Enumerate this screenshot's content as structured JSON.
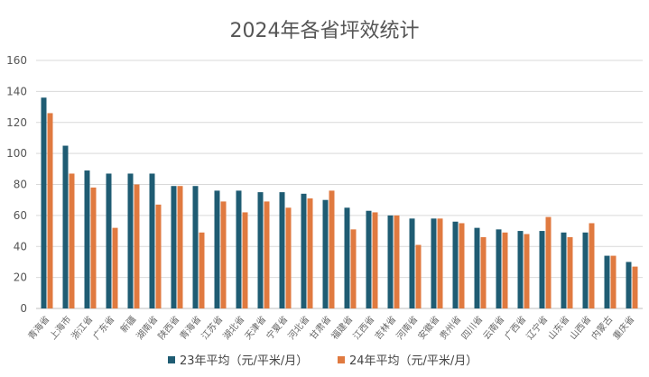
{
  "chart_data": {
    "type": "bar",
    "title": "2024年各省坪效统计",
    "xlabel": "",
    "ylabel": "",
    "ylim": [
      0,
      160
    ],
    "yticks": [
      0,
      20,
      40,
      60,
      80,
      100,
      120,
      140,
      160
    ],
    "grid": true,
    "legend_position": "bottom",
    "categories": [
      "青海省",
      "上海市",
      "浙江省",
      "广东省",
      "新疆",
      "湖南省",
      "陕西省",
      "青海省",
      "江苏省",
      "湖北省",
      "天津省",
      "宁夏省",
      "河北省",
      "甘肃省",
      "福建省",
      "江西省",
      "吉林省",
      "河南省",
      "安徽省",
      "贵州省",
      "四川省",
      "云南省",
      "广西省",
      "辽宁省",
      "山东省",
      "山西省",
      "内蒙古",
      "重庆省"
    ],
    "series": [
      {
        "name": "23年平均（元/平米/月）",
        "color": "#1f5c73",
        "values": [
          136,
          105,
          89,
          87,
          87,
          87,
          79,
          79,
          76,
          76,
          75,
          75,
          74,
          70,
          65,
          63,
          60,
          58,
          58,
          56,
          52,
          51,
          50,
          50,
          49,
          49,
          34,
          30
        ]
      },
      {
        "name": "24年平均（元/平米/月）",
        "color": "#e07a40",
        "values": [
          126,
          87,
          78,
          52,
          80,
          67,
          79,
          49,
          69,
          62,
          69,
          65,
          71,
          76,
          51,
          62,
          60,
          41,
          58,
          55,
          46,
          49,
          48,
          59,
          46,
          55,
          34,
          27
        ]
      }
    ]
  }
}
